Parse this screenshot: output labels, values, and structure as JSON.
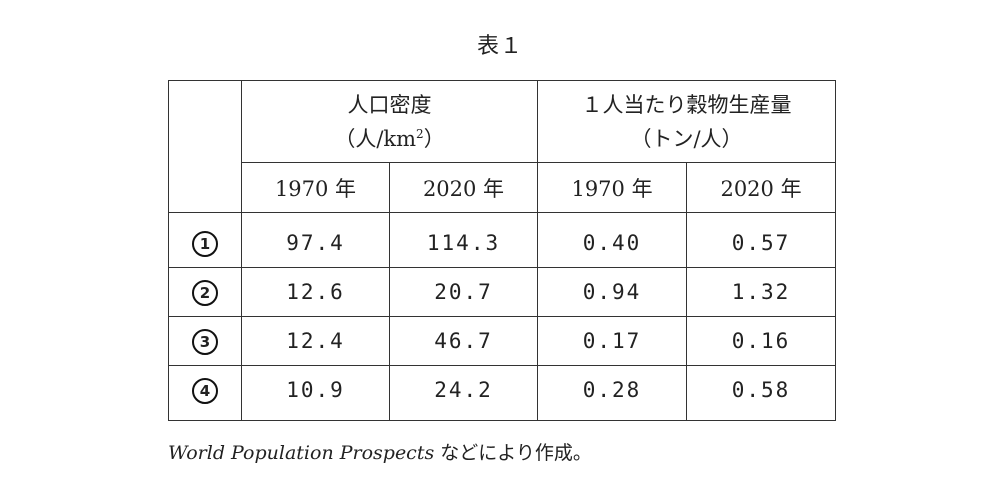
{
  "title": "表１",
  "table": {
    "group_headers": [
      {
        "line1": "人口密度",
        "line2_prefix": "（人/km",
        "line2_sup": "2",
        "line2_suffix": "）"
      },
      {
        "line1": "１人当たり穀物生産量",
        "line2_prefix": "（トン/人）",
        "line2_sup": "",
        "line2_suffix": ""
      }
    ],
    "year_headers": [
      "1970 年",
      "2020 年",
      "1970 年",
      "2020 年"
    ],
    "rows": [
      {
        "label": "1",
        "values": [
          "97.4",
          "114.3",
          "0.40",
          "0.57"
        ]
      },
      {
        "label": "2",
        "values": [
          "12.6",
          "20.7",
          "0.94",
          "1.32"
        ]
      },
      {
        "label": "3",
        "values": [
          "12.4",
          "46.7",
          "0.17",
          "0.16"
        ]
      },
      {
        "label": "4",
        "values": [
          "10.9",
          "24.2",
          "0.28",
          "0.58"
        ]
      }
    ]
  },
  "source": {
    "italic": "World Population Prospects",
    "rest": " などにより作成。"
  }
}
